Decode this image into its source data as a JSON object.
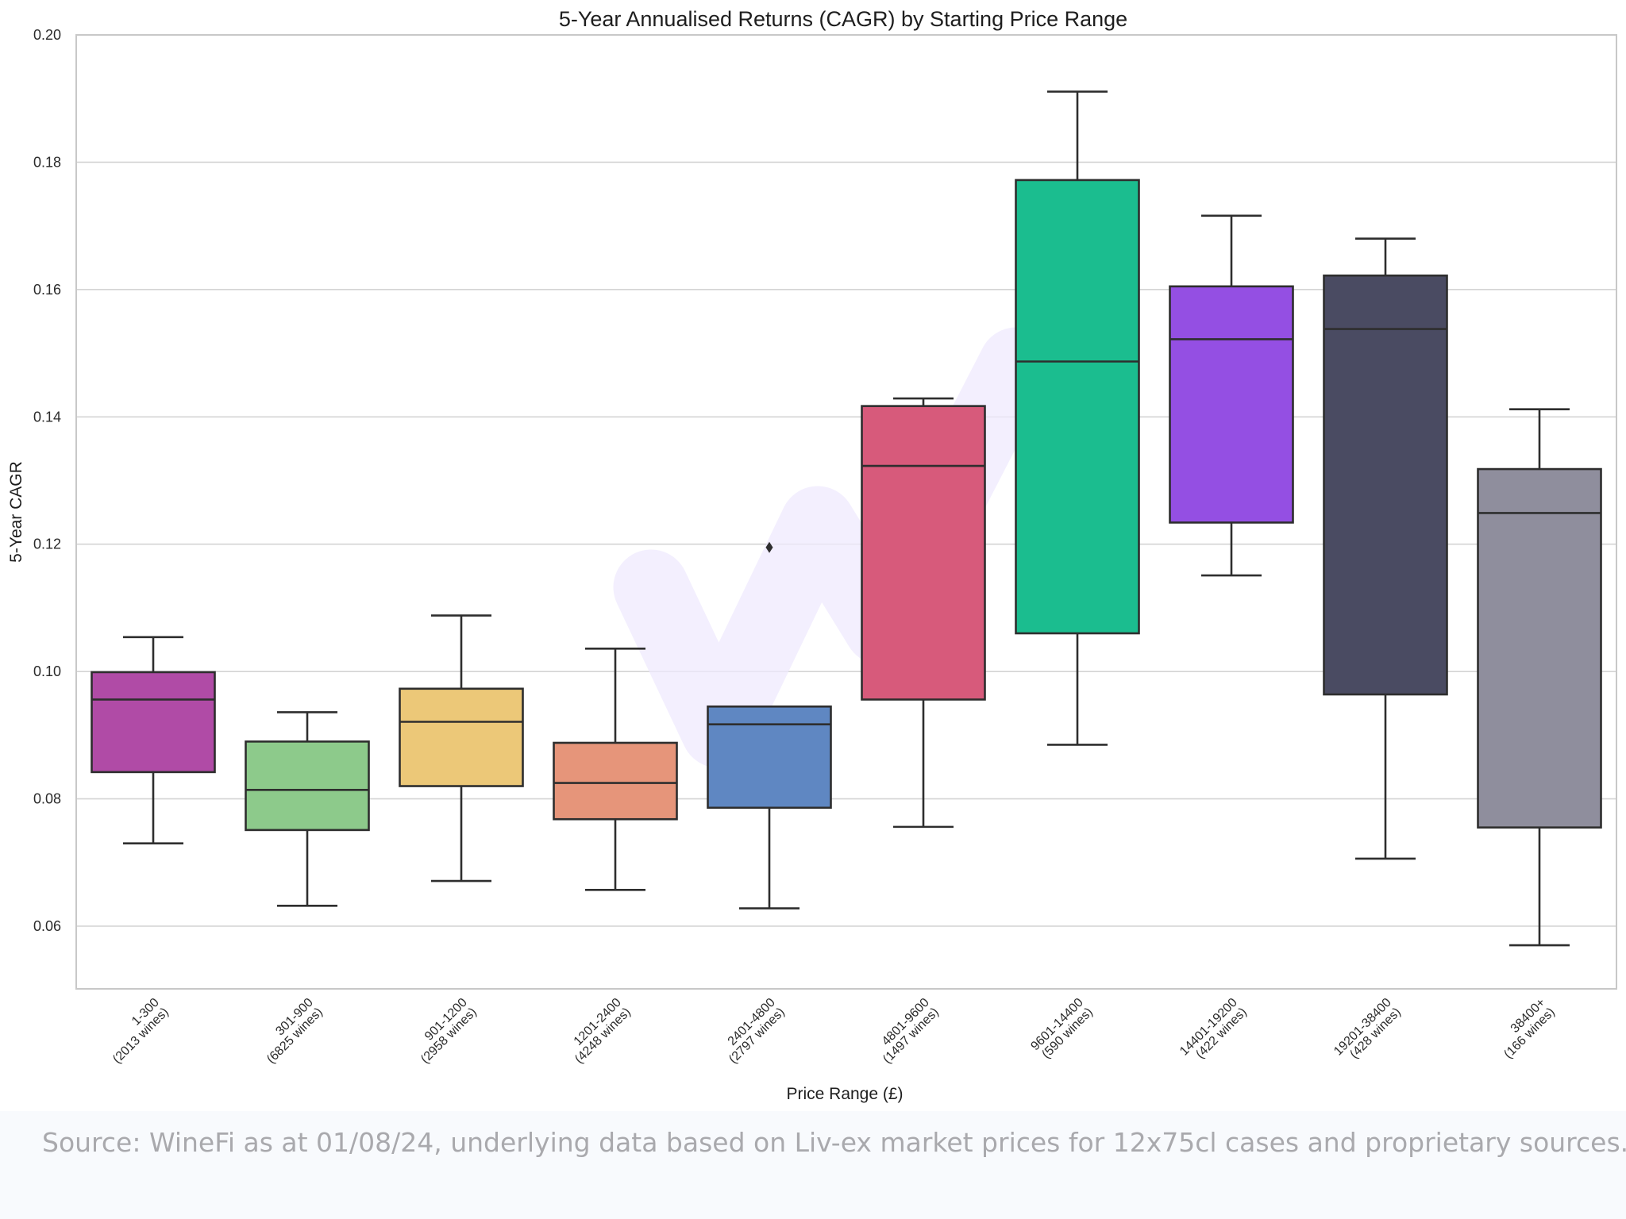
{
  "chart_data": {
    "type": "box",
    "title": "5-Year Annualised Returns (CAGR) by Starting Price Range",
    "xlabel": "Price Range (£)",
    "ylabel": "5-Year CAGR",
    "ylim": [
      0.05,
      0.2
    ],
    "yticks": [
      0.06,
      0.08,
      0.1,
      0.12,
      0.14,
      0.16,
      0.18,
      0.2
    ],
    "ytick_labels": [
      "0.06",
      "0.08",
      "0.10",
      "0.12",
      "0.14",
      "0.16",
      "0.18",
      "0.20"
    ],
    "grid": true,
    "categories": [
      {
        "range": "1-300",
        "count": "(2013 wines)",
        "color": "#b04ba6",
        "whisker_low": 0.073,
        "q1": 0.0842,
        "median": 0.0956,
        "q3": 0.0999,
        "whisker_high": 0.1054,
        "outliers": []
      },
      {
        "range": "301-900",
        "count": "(6825 wines)",
        "color": "#8dca8b",
        "whisker_low": 0.0632,
        "q1": 0.0751,
        "median": 0.0814,
        "q3": 0.089,
        "whisker_high": 0.0936,
        "outliers": []
      },
      {
        "range": "901-1200",
        "count": "(2958 wines)",
        "color": "#ecc878",
        "whisker_low": 0.0671,
        "q1": 0.082,
        "median": 0.0921,
        "q3": 0.0973,
        "whisker_high": 0.1088,
        "outliers": []
      },
      {
        "range": "1201-2400",
        "count": "(4248 wines)",
        "color": "#e6957a",
        "whisker_low": 0.0657,
        "q1": 0.0768,
        "median": 0.0825,
        "q3": 0.0888,
        "whisker_high": 0.1036,
        "outliers": []
      },
      {
        "range": "2401-4800",
        "count": "(2797 wines)",
        "color": "#5f87c2",
        "whisker_low": 0.0628,
        "q1": 0.0786,
        "median": 0.0917,
        "q3": 0.0945,
        "whisker_high": 0.0945,
        "outliers": [
          0.1195
        ]
      },
      {
        "range": "4801-9600",
        "count": "(1497 wines)",
        "color": "#d75a7b",
        "whisker_low": 0.0756,
        "q1": 0.0956,
        "median": 0.1323,
        "q3": 0.1417,
        "whisker_high": 0.1429,
        "outliers": []
      },
      {
        "range": "9601-14400",
        "count": "(590 wines)",
        "color": "#1bbd8f",
        "whisker_low": 0.0885,
        "q1": 0.106,
        "median": 0.1487,
        "q3": 0.1772,
        "whisker_high": 0.1911,
        "outliers": []
      },
      {
        "range": "14401-19200",
        "count": "(422 wines)",
        "color": "#944fe3",
        "whisker_low": 0.1151,
        "q1": 0.1234,
        "median": 0.1522,
        "q3": 0.1605,
        "whisker_high": 0.1716,
        "outliers": []
      },
      {
        "range": "19201-38400",
        "count": "(428 wines)",
        "color": "#4a4b62",
        "whisker_low": 0.0706,
        "q1": 0.0964,
        "median": 0.1538,
        "q3": 0.1622,
        "whisker_high": 0.168,
        "outliers": []
      },
      {
        "range": "38400+",
        "count": "(166 wines)",
        "color": "#8f8e9d",
        "whisker_low": 0.057,
        "q1": 0.0755,
        "median": 0.1249,
        "q3": 0.1318,
        "whisker_high": 0.1412,
        "outliers": []
      }
    ]
  },
  "footer": {
    "source": "Source: WineFi as at 01/08/24, underlying data based on Liv-ex market prices for 12x75cl cases and proprietary sources."
  },
  "colors": {
    "grid": "#d4d4d4",
    "frame": "#c8c8c8",
    "stroke": "#2e2e2e",
    "watermark": "#efeafd"
  }
}
